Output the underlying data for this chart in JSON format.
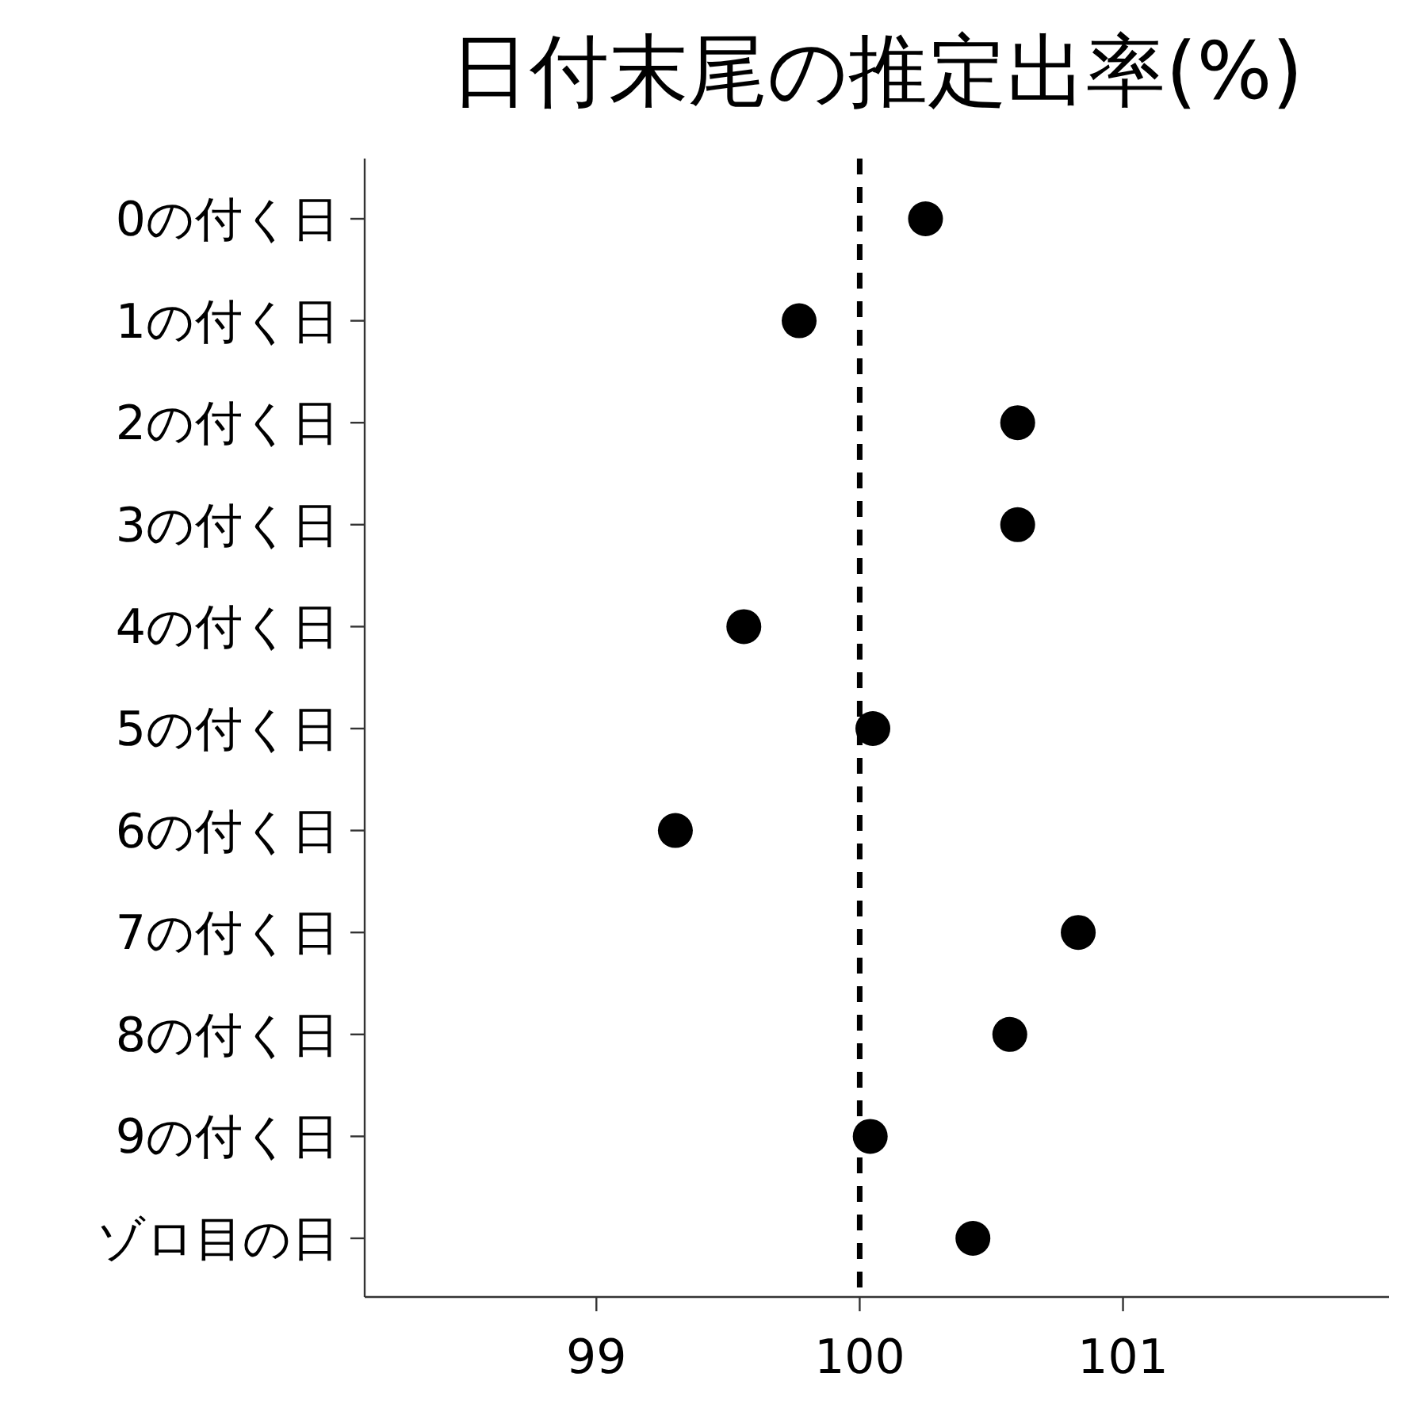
{
  "chart_data": {
    "type": "scatter",
    "orientation": "horizontal",
    "title": "日付末尾の推定出率(%)",
    "categories": [
      "0の付く日",
      "1の付く日",
      "2の付く日",
      "3の付く日",
      "4の付く日",
      "5の付く日",
      "6の付く日",
      "7の付く日",
      "8の付く日",
      "9の付く日",
      "ゾロ目の日"
    ],
    "values": [
      100.25,
      99.77,
      100.6,
      100.6,
      99.56,
      100.05,
      99.3,
      100.83,
      100.57,
      100.04,
      100.43
    ],
    "color": "#000000",
    "marker": "circle",
    "xlim": [
      98.12,
      102.01
    ],
    "xticks": [
      99,
      100,
      101
    ],
    "ref_lines": [
      {
        "axis": "x",
        "value": 100,
        "color": "#000000",
        "line_style": "dashed"
      }
    ],
    "grid": false
  }
}
